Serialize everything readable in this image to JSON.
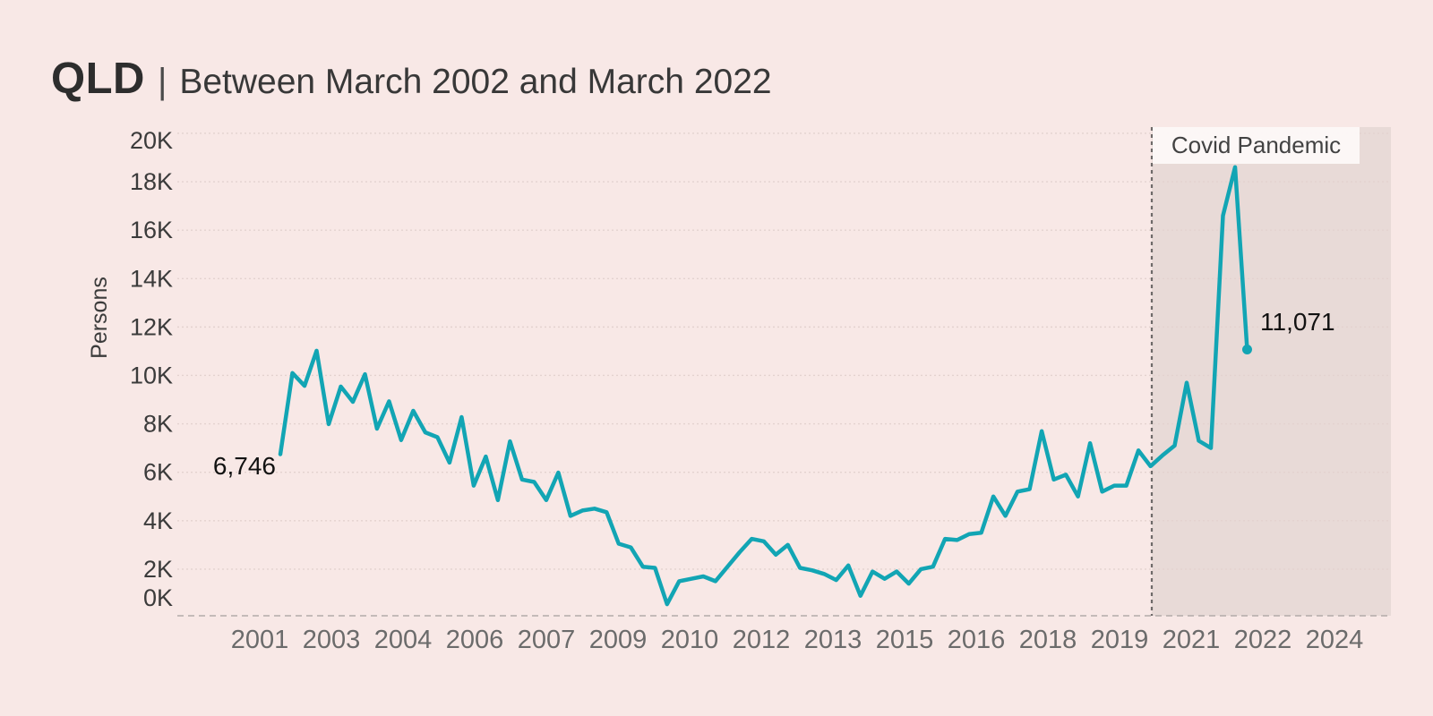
{
  "header": {
    "title": "QLD",
    "separator": "|",
    "subtitle": "Between March 2002 and March 2022"
  },
  "chart_data": {
    "type": "line",
    "title": "QLD | Between March 2002 and March 2022",
    "ylabel": "Persons",
    "frequency": "quarterly",
    "period_start": "March 2002",
    "period_end": "March 2022",
    "values": [
      6746,
      10100,
      9570,
      11020,
      7990,
      9540,
      8910,
      10050,
      7800,
      8930,
      7330,
      8540,
      7650,
      7450,
      6400,
      8280,
      5450,
      6650,
      4850,
      7280,
      5700,
      5600,
      4850,
      5990,
      4200,
      4420,
      4500,
      4350,
      3050,
      2900,
      2100,
      2050,
      550,
      1500,
      1600,
      1700,
      1500,
      2100,
      2700,
      3250,
      3150,
      2600,
      3000,
      2050,
      1950,
      1800,
      1550,
      2150,
      900,
      1900,
      1600,
      1900,
      1400,
      2000,
      2100,
      3250,
      3200,
      3450,
      3500,
      5000,
      4200,
      5200,
      5300,
      7700,
      5700,
      5900,
      5000,
      7200,
      5200,
      5450,
      5450,
      6900,
      6250,
      6700,
      7100,
      9700,
      7300,
      7000,
      16600,
      18600,
      11071
    ],
    "first_value_label": "6,746",
    "last_value_label": "11,071",
    "y_ticks": [
      "0K",
      "2K",
      "4K",
      "6K",
      "8K",
      "10K",
      "12K",
      "14K",
      "16K",
      "18K",
      "20K"
    ],
    "x_ticks": [
      "2001",
      "2003",
      "2004",
      "2006",
      "2007",
      "2009",
      "2010",
      "2012",
      "2013",
      "2015",
      "2016",
      "2018",
      "2019",
      "2021",
      "2022",
      "2024"
    ],
    "ylim": [
      0,
      20000
    ],
    "grid": "dotted-horizontal",
    "legend": "none",
    "region_annotation": {
      "label": "Covid Pandemic",
      "starts_at": "2020"
    },
    "colors": {
      "line": "#12a5b4",
      "background": "#f8e8e6",
      "covid_region_fill": "#e8dad7",
      "gridline": "#e3d2cf",
      "axis_dash": "#b3aaa8",
      "covid_divider": "#6e6a69",
      "y_tick_text": "#3b3b3b",
      "x_tick_text": "#6b6b6b"
    }
  }
}
